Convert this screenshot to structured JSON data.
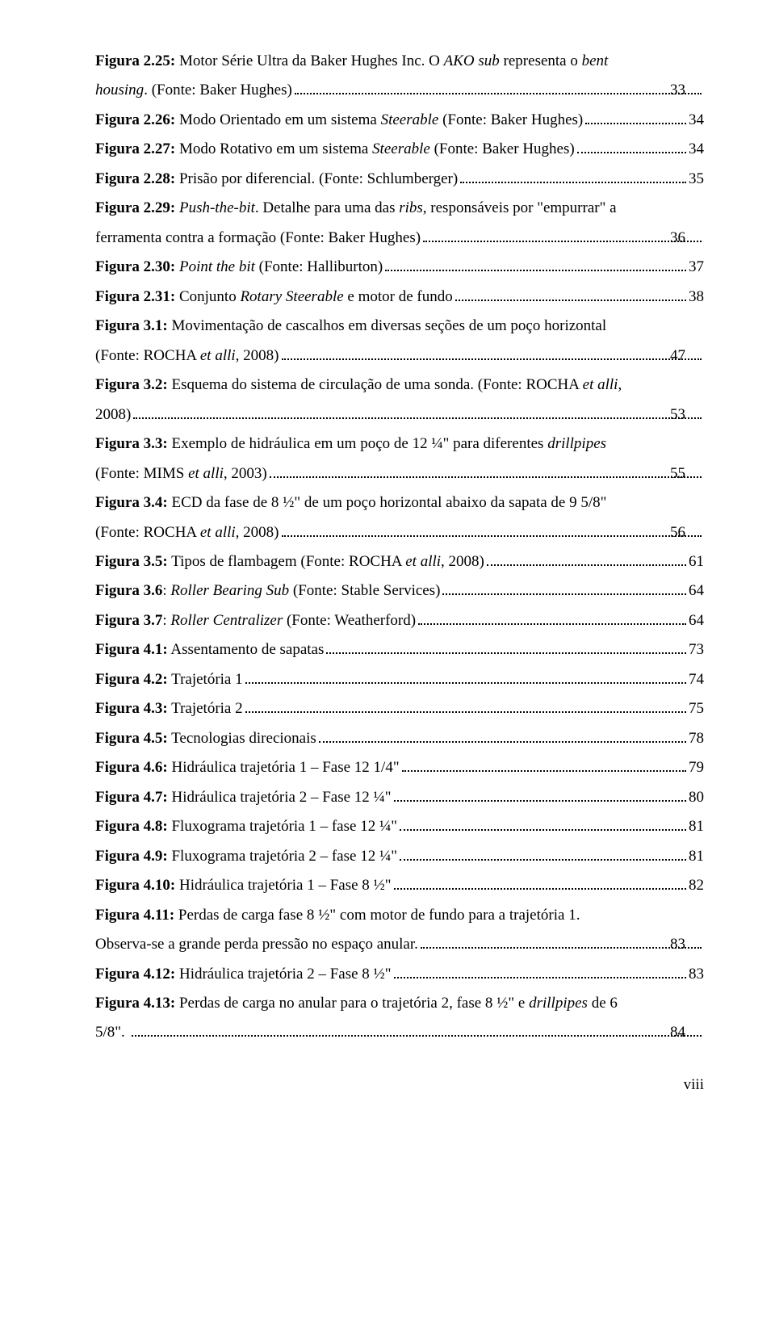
{
  "page_number_label": "viii",
  "entries": [
    {
      "lines": [
        {
          "segments": [
            {
              "t": "Figura 2.25:",
              "b": true
            },
            {
              "t": " Motor Série Ultra da Baker Hughes Inc. O "
            },
            {
              "t": "AKO sub",
              "i": true
            },
            {
              "t": " representa o "
            },
            {
              "t": "bent",
              "i": true
            }
          ]
        },
        {
          "hang": true,
          "leader": true,
          "page": "33",
          "segments": [
            {
              "t": "housing",
              "i": true
            },
            {
              "t": ". (Fonte: Baker Hughes)"
            }
          ]
        }
      ]
    },
    {
      "lines": [
        {
          "leader": true,
          "page": "34",
          "segments": [
            {
              "t": "Figura 2.26:",
              "b": true
            },
            {
              "t": " Modo Orientado em um sistema "
            },
            {
              "t": "Steerable",
              "i": true
            },
            {
              "t": " (Fonte: Baker Hughes)"
            }
          ]
        }
      ]
    },
    {
      "lines": [
        {
          "leader": true,
          "page": "34",
          "segments": [
            {
              "t": "Figura 2.27:",
              "b": true
            },
            {
              "t": " Modo Rotativo em um sistema "
            },
            {
              "t": "Steerable",
              "i": true
            },
            {
              "t": " (Fonte: Baker Hughes)"
            }
          ]
        }
      ]
    },
    {
      "lines": [
        {
          "leader": true,
          "page": "35",
          "segments": [
            {
              "t": "Figura 2.28:",
              "b": true
            },
            {
              "t": " Prisão por diferencial. (Fonte: Schlumberger)"
            }
          ]
        }
      ]
    },
    {
      "lines": [
        {
          "segments": [
            {
              "t": "Figura 2.29:",
              "b": true
            },
            {
              "t": " "
            },
            {
              "t": "Push-the-bit",
              "i": true
            },
            {
              "t": ". Detalhe para uma das "
            },
            {
              "t": "ribs",
              "i": true
            },
            {
              "t": ", responsáveis por \"empurrar\" a"
            }
          ]
        },
        {
          "hang": true,
          "leader": true,
          "page": "36",
          "segments": [
            {
              "t": "ferramenta contra a formação (Fonte: Baker Hughes)"
            }
          ]
        }
      ]
    },
    {
      "lines": [
        {
          "leader": true,
          "page": "37",
          "segments": [
            {
              "t": "Figura 2.30:",
              "b": true
            },
            {
              "t": " "
            },
            {
              "t": "Point the bit",
              "i": true
            },
            {
              "t": " (Fonte: Halliburton)"
            }
          ]
        }
      ]
    },
    {
      "lines": [
        {
          "leader": true,
          "page": "38",
          "segments": [
            {
              "t": "Figura 2.31:",
              "b": true
            },
            {
              "t": " Conjunto "
            },
            {
              "t": "Rotary Steerable",
              "i": true
            },
            {
              "t": " e motor de fundo"
            }
          ]
        }
      ]
    },
    {
      "lines": [
        {
          "segments": [
            {
              "t": "Figura 3.1:",
              "b": true
            },
            {
              "t": " Movimentação de cascalhos em diversas seções de um poço horizontal"
            }
          ]
        },
        {
          "hang": true,
          "leader": true,
          "page": "47",
          "segments": [
            {
              "t": "(Fonte: ROCHA "
            },
            {
              "t": "et alli",
              "i": true
            },
            {
              "t": ", 2008)"
            }
          ]
        }
      ]
    },
    {
      "lines": [
        {
          "segments": [
            {
              "t": "Figura 3.2:",
              "b": true
            },
            {
              "t": " Esquema do sistema de circulação de uma sonda. (Fonte: ROCHA "
            },
            {
              "t": "et alli",
              "i": true
            },
            {
              "t": ","
            }
          ]
        },
        {
          "hang": true,
          "leader": true,
          "page": "53",
          "segments": [
            {
              "t": "2008)"
            }
          ]
        }
      ]
    },
    {
      "lines": [
        {
          "segments": [
            {
              "t": "Figura 3.3:",
              "b": true
            },
            {
              "t": " Exemplo de hidráulica em um poço de 12 ¼\" para diferentes "
            },
            {
              "t": "drillpipes",
              "i": true
            }
          ]
        },
        {
          "hang": true,
          "leader": true,
          "page": "55",
          "segments": [
            {
              "t": "(Fonte: MIMS "
            },
            {
              "t": "et alli",
              "i": true
            },
            {
              "t": ", 2003)"
            }
          ]
        }
      ]
    },
    {
      "lines": [
        {
          "segments": [
            {
              "t": "Figura 3.4:",
              "b": true
            },
            {
              "t": " ECD da fase de 8 ½\" de um poço horizontal abaixo da sapata de 9 5/8\""
            }
          ]
        },
        {
          "hang": true,
          "leader": true,
          "page": "56",
          "segments": [
            {
              "t": "(Fonte: ROCHA "
            },
            {
              "t": "et alli,",
              "i": true
            },
            {
              "t": " 2008)"
            }
          ]
        }
      ]
    },
    {
      "lines": [
        {
          "leader": true,
          "page": "61",
          "segments": [
            {
              "t": "Figura 3.5:",
              "b": true
            },
            {
              "t": " Tipos de flambagem (Fonte: ROCHA "
            },
            {
              "t": "et alli",
              "i": true
            },
            {
              "t": ", 2008)"
            }
          ]
        }
      ]
    },
    {
      "lines": [
        {
          "leader": true,
          "page": "64",
          "segments": [
            {
              "t": "Figura 3.6",
              "b": true
            },
            {
              "t": ": "
            },
            {
              "t": "Roller Bearing Sub",
              "i": true
            },
            {
              "t": " (Fonte: Stable Services)"
            }
          ]
        }
      ]
    },
    {
      "lines": [
        {
          "leader": true,
          "page": "64",
          "segments": [
            {
              "t": "Figura 3.7",
              "b": true
            },
            {
              "t": ": "
            },
            {
              "t": "Roller Centralizer",
              "i": true
            },
            {
              "t": " (Fonte: Weatherford)"
            }
          ]
        }
      ]
    },
    {
      "lines": [
        {
          "leader": true,
          "page": "73",
          "segments": [
            {
              "t": "Figura 4.1:",
              "b": true
            },
            {
              "t": " Assentamento de sapatas"
            }
          ]
        }
      ]
    },
    {
      "lines": [
        {
          "leader": true,
          "page": "74",
          "segments": [
            {
              "t": "Figura 4.2:",
              "b": true
            },
            {
              "t": " Trajetória 1"
            }
          ]
        }
      ]
    },
    {
      "lines": [
        {
          "leader": true,
          "page": "75",
          "segments": [
            {
              "t": "Figura 4.3:",
              "b": true
            },
            {
              "t": " Trajetória 2"
            }
          ]
        }
      ]
    },
    {
      "lines": [
        {
          "leader": true,
          "page": "78",
          "segments": [
            {
              "t": "Figura 4.5:",
              "b": true
            },
            {
              "t": " Tecnologias direcionais"
            }
          ]
        }
      ]
    },
    {
      "lines": [
        {
          "leader": true,
          "page": "79",
          "segments": [
            {
              "t": "Figura 4.6:",
              "b": true
            },
            {
              "t": " Hidráulica trajetória 1 – Fase 12 1/4\""
            }
          ]
        }
      ]
    },
    {
      "lines": [
        {
          "leader": true,
          "page": "80",
          "segments": [
            {
              "t": "Figura 4.7:",
              "b": true
            },
            {
              "t": " Hidráulica trajetória 2 – Fase 12 ¼\""
            }
          ]
        }
      ]
    },
    {
      "lines": [
        {
          "leader": true,
          "page": "81",
          "segments": [
            {
              "t": "Figura 4.8:",
              "b": true
            },
            {
              "t": " Fluxograma trajetória 1 – fase 12 ¼\""
            }
          ]
        }
      ]
    },
    {
      "lines": [
        {
          "leader": true,
          "page": "81",
          "segments": [
            {
              "t": "Figura 4.9:",
              "b": true
            },
            {
              "t": " Fluxograma trajetória 2 – fase 12 ¼\""
            }
          ]
        }
      ]
    },
    {
      "lines": [
        {
          "leader": true,
          "page": "82",
          "segments": [
            {
              "t": "Figura 4.10:",
              "b": true
            },
            {
              "t": " Hidráulica trajetória 1 – Fase 8 ½\""
            }
          ]
        }
      ]
    },
    {
      "lines": [
        {
          "segments": [
            {
              "t": "Figura 4.11:",
              "b": true
            },
            {
              "t": " Perdas de carga fase 8 ½\" com motor de fundo para a trajetória 1."
            }
          ]
        },
        {
          "hang": true,
          "leader": true,
          "page": "83",
          "segments": [
            {
              "t": "Observa-se a grande perda pressão no espaço anular."
            }
          ]
        }
      ]
    },
    {
      "lines": [
        {
          "leader": true,
          "page": "83",
          "segments": [
            {
              "t": "Figura 4.12:",
              "b": true
            },
            {
              "t": " Hidráulica trajetória 2 – Fase 8 ½\""
            }
          ]
        }
      ]
    },
    {
      "lines": [
        {
          "segments": [
            {
              "t": "Figura 4.13:",
              "b": true
            },
            {
              "t": " Perdas de carga no anular para o trajetória 2, fase 8 ½\" e "
            },
            {
              "t": "drillpipes",
              "i": true
            },
            {
              "t": " de 6"
            }
          ]
        },
        {
          "hang": true,
          "leader": true,
          "page": "84",
          "segments": [
            {
              "t": "5/8\"."
            }
          ]
        }
      ]
    }
  ]
}
